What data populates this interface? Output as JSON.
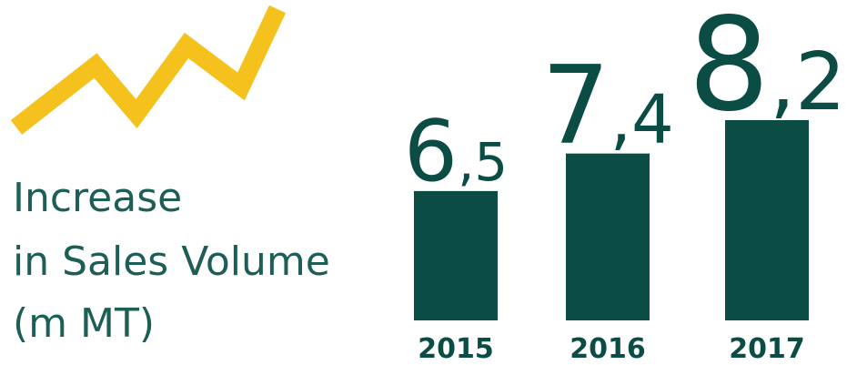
{
  "chart_data": {
    "type": "bar",
    "title_lines": [
      "Increase",
      "in Sales Volume",
      "(m MT)"
    ],
    "categories": [
      "2015",
      "2016",
      "2017"
    ],
    "values": [
      6.5,
      7.4,
      8.2
    ],
    "value_labels": [
      "6,5",
      "7,4",
      "8,2"
    ],
    "color": "#0b4d45",
    "ylim": [
      3.4,
      8.2
    ]
  }
}
